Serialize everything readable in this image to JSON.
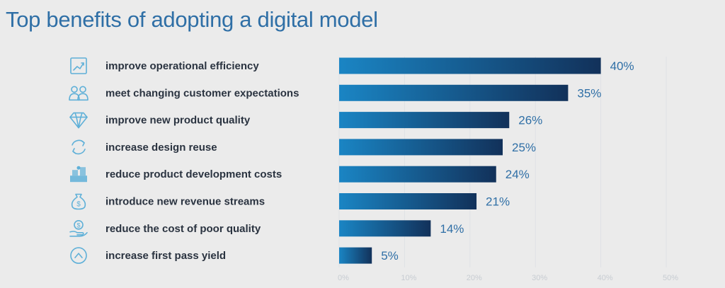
{
  "title": "Top benefits of adopting a digital model",
  "colors": {
    "title": "#2f6fa6",
    "bar_start": "#1a85c4",
    "bar_end": "#12315a",
    "value_text": "#2f6fa6",
    "label_text": "#2a3340",
    "icon": "#5fb0d8",
    "grid": "#dfe2e5"
  },
  "chart_data": {
    "type": "bar",
    "orientation": "horizontal",
    "categories": [
      "improve operational efficiency",
      "meet changing customer expectations",
      "improve new product quality",
      "increase design reuse",
      "reduce product development costs",
      "introduce new revenue streams",
      "reduce the cost of poor quality",
      "increase first pass yield"
    ],
    "values": [
      40,
      35,
      26,
      25,
      24,
      21,
      14,
      5
    ],
    "value_labels": [
      "40%",
      "35%",
      "26%",
      "25%",
      "24%",
      "21%",
      "14%",
      "5%"
    ],
    "icons": [
      "chart-growth-icon",
      "customers-icon",
      "diamond-icon",
      "recycle-icon",
      "cost-reduction-icon",
      "money-bag-icon",
      "hand-coin-icon",
      "chevron-up-circle-icon"
    ],
    "xlim": [
      0,
      50
    ],
    "ticks": [
      0,
      10,
      20,
      30,
      40,
      50
    ],
    "tick_labels": [
      "0%",
      "10%",
      "20%",
      "30%",
      "40%",
      "50%"
    ],
    "grid": true
  }
}
